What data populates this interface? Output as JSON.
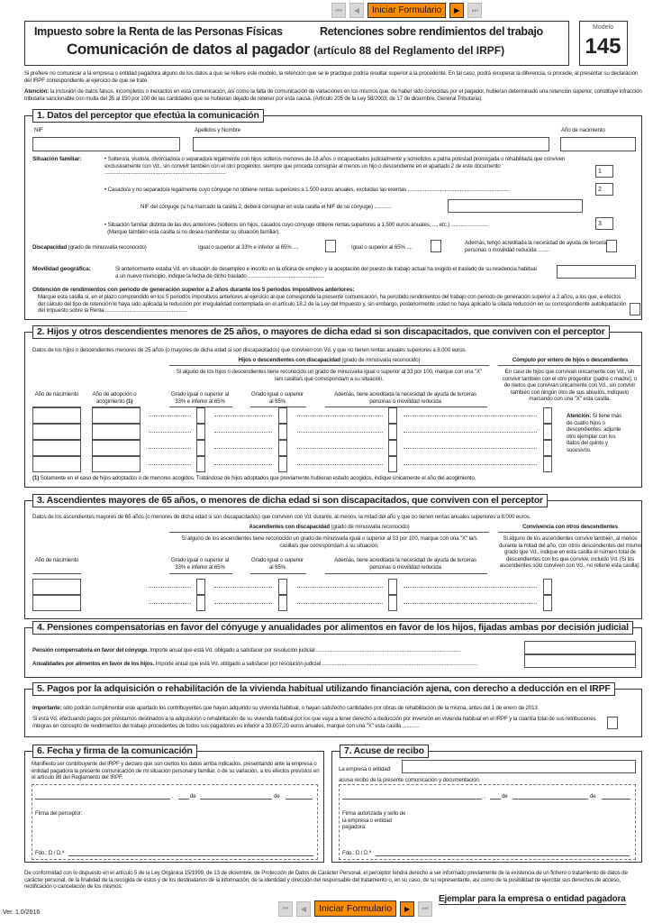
{
  "nav": {
    "first": "⏮",
    "prev": "◀",
    "start": "Iniciar Formulario",
    "next": "▶",
    "last": "⏭",
    "accent": "#ff8c00"
  },
  "header": {
    "tax": "Impuesto sobre la Renta de las Personas Físicas",
    "subject": "Retenciones sobre rendimientos del trabajo",
    "title": "Comunicación de datos al pagador",
    "article": "(artículo 88 del Reglamento del IRPF)",
    "modelo_label": "Modelo",
    "modelo_num": "145"
  },
  "intro": {
    "p1": "Si prefiere no comunicar a la empresa o entidad pagadora alguno de los datos a que se refiere este modelo, la retención que se le practique podría resultar superior a la procedente. En tal caso, podrá recuperar la diferencia, si procede, al presentar su declaración del IRPF correspondiente al ejercicio de que se trate.",
    "att_label": "Atención:",
    "p2": "la inclusión de datos falsos, incompletos o inexactos en esta comunicación, así como la falta de comunicación de variaciones en los mismos que, de haber sido conocidas por el pagador, hubieran determinado una retención superior, constituye infracción tributaria sancionable con multa del 35 al 150 por 100 de las cantidades que se hubieran dejado de retener por esta causa. (Artículo 205 de la Ley 58/2003, de 17 de diciembre, General Tributaria)."
  },
  "s1": {
    "title": "1. Datos del perceptor que efectúa la comunicación",
    "nif": "NIF",
    "nombre": "Apellidos y Nombre",
    "anio": "Año de nacimiento",
    "sit_label": "Situación familiar:",
    "opt1": "Soltero/a, viudo/a, divorciado/a o separado/a legalmente con hijos solteros menores de 18 años o incapacitados judicialmente y sometidos a patria potestad prorrogada o rehabilitada que conviven exclusivamente con Vd., sin convivir también con el otro progenitor, siempre que proceda consignar al menos un hijo o descendiente en el apartado 2 de este documento",
    "opt2": "Casado/a y no separado/a legalmente cuyo cónyuge no obtiene rentas superiores a 1.500 euros anuales, excluidas las exentas",
    "nif_conyuge": "NIF del cónyuge (si ha marcado la casilla 2, deberá consignar en esta casilla el NIF de su cónyuge) ............",
    "opt3": "Situación familiar distinta de las dos anteriores (solteros sin hijos, casados cuyo cónyuge obtiene rentas superiores a 1.500 euros anuales, ..., etc.)",
    "opt3b": "(Marque también esta casilla si no desea manifestar su situación familiar).",
    "box1": "1",
    "box2": "2",
    "box3": "3",
    "disc_label": "Discapacidad",
    "disc_sub": "(grado de minusvalía reconocido)",
    "disc33": "Igual o superior al 33% e inferior al 65% ....",
    "disc65": "Igual o superior al 65% ....",
    "disc_ayuda": "Además, tengo acreditada la necesidad de ayuda de terceras personas o movilidad reducida ........",
    "mov_label": "Movilidad geográfica:",
    "mov_text": "Si anteriormente estaba Vd. en situación de desempleo e inscrito en la oficina de empleo y la aceptación del puesto de trabajo actual ha exigido el traslado de su residencia habitual a un nuevo municipio, indique la fecha de dicho traslado",
    "rend_title": "Obtención de rendimientos con periodo de generación superior a 2 años durante los 5 periodos impositivos anteriores:",
    "rend_text": "Marque esta casilla si, en el plazo comprendido en los 5 periodos impositivos anteriores al ejercicio al que corresponde la presente comunicación, ha percibido rendimientos del trabajo con periodo de generación superior a 2 años, a los que, a efectos del cálculo del tipo de retención le haya sido aplicada la reducción por irregularidad contemplada en el artículo 18.2 de la Ley del Impuesto y, sin embargo, posteriormente usted no haya aplicado la citada reducción en su correspondiente autoliquidación del Impuesto sobre la Renta"
  },
  "s2": {
    "title": "2. Hijos y otros descendientes menores de 25 años, o mayores de dicha edad si son discapacitados, que conviven con el perceptor",
    "intro": "Datos de los hijos o descendientes menores de 25 años (o mayores de dicha edad si son discapacitados) que conviven con Vd. y que no tienen rentas anuales superiores a 8.000 euros.",
    "disc_head": "Hijos o descendientes con discapacidad",
    "disc_head_sub": "(grado de minusvalía reconocido)",
    "comp_head": "Cómputo por entero de hijos o descendientes",
    "disc_note": "Si alguno de los hijos o descendientes tiene reconocido un grado de minusvalía igual o superior al 33 por 100, marque con una \"X\" la/s casilla/s que corresponda/n a su situación.",
    "comp_note": "En caso de hijos que convivan únicamente con Vd., sin convivir también con el otro progenitor (padre o madre), o de nietos que convivan únicamente con Vd., sin convivir también con ningún otro de sus abuelos, indíquelo marcando con una \"X\" esta casilla.",
    "col_anio": "Año de nacimiento",
    "col_adop": "Año de adopción o acogimiento",
    "col_adop_sup": "(1)",
    "col_33": "Grado igual o superior al 33% e inferior al 65%",
    "col_65": "Grado igual o superior al 65%",
    "col_ayuda": "Además, tiene acreditada la necesidad de ayuda de terceras personas o movilidad reducida",
    "att_label": "Atención:",
    "att_text": "Si tiene más de cuatro hijos o descendientes, adjunte otro ejemplar con los datos del quinto y sucesivos.",
    "foot_sup": "(1)",
    "foot": "Solamente en el caso de hijos adoptados o de menores acogidos. Tratándose de hijos adoptados que previamente hubieran estado acogidos, indique únicamente el año del acogimiento."
  },
  "s3": {
    "title": "3. Ascendientes mayores de 65 años, o menores de dicha edad si son discapacitados, que conviven con el perceptor",
    "intro": "Datos de los ascendientes mayores de 65 años (o menores de dicha edad si son discapacitados) que conviven con Vd. durante, al menos, la mitad del año y que no tienen rentas anuales superiores a 8.000 euros.",
    "disc_head": "Ascendientes con discapacidad",
    "disc_head_sub": "(grado de minusvalía reconocido)",
    "conv_head": "Convivencia con otros descendientes",
    "disc_note": "Si alguno de los ascendientes tiene reconocido un grado de minusvalía igual o superior al 33 por 100, marque con una \"X\" la/s casilla/s que corresponda/n a su situación.",
    "conv_note": "Si alguno de los ascendientes convive también, al menos durante la mitad del año, con otros descendientes del mismo grado que Vd., indique en esta casilla el número total de descendientes con los que convive, incluido Vd. (Si los ascendientes sólo conviven con Vd., no rellene esta casilla).",
    "col_anio": "Año de nacimiento",
    "col_33": "Grado igual o superior al 33% e inferior al 65%",
    "col_65": "Grado igual o superior al 65%",
    "col_ayuda": "Además, tiene acreditada la necesidad de ayuda de terceras personas o movilidad reducida"
  },
  "s4": {
    "title": "4. Pensiones compensatorias en favor del cónyuge y anualidades por alimentos en favor de los hijos, fijadas ambas por decisión judicial",
    "pens_label": "Pensión compensatoria en favor del cónyuge.",
    "pens_text": "Importe anual que está Vd. obligado a satisfacer por resolución judicial",
    "anu_label": "Anualidades por alimentos en favor de los hijos.",
    "anu_text": "Importe anual que está Vd. obligado a satisfacer por resolución judicial"
  },
  "s5": {
    "title": "5. Pagos por la adquisición o rehabilitación de la vivienda habitual utilizando financiación ajena, con derecho a deducción en el IRPF",
    "imp_label": "Importante:",
    "imp_text": "sólo podrán cumplimentar este apartado los contribuyentes que hayan adquirido su vivienda habitual, o hayan satisfecho cantidades por obras de rehabilitación de la misma, antes del 1 de enero de 2013.",
    "text": "Si está Vd. efectuando pagos por préstamos destinados a la adquisición o rehabilitación de su vivienda habitual por los que vaya a tener derecho a deducción por inversión en vivienda habitual en el IRPF y la cuantía total de sus retribuciones íntegras en concepto de rendimientos del trabajo procedentes de todos sus pagadores es inferior a 33.007,20 euros anuales, marque con una \"X\" esta casilla ............"
  },
  "s6": {
    "title": "6. Fecha y firma de la comunicación",
    "text": "Manifiesto ser contribuyente del IRPF y declaro que son ciertos los datos arriba indicados, presentando ante la empresa o entidad pagadora la presente comunicación de mi situación personal y familiar, o de su variación, a los efectos previstos en el artículo 88 del Reglamento del IRPF.",
    "de": "de",
    "comma": ",",
    "firma": "Firma del perceptor:",
    "fdo": "Fdo.: D / D.ª"
  },
  "s7": {
    "title": "7. Acuse de recibo",
    "empresa": "La empresa o entidad:",
    "acusa": "acusa recibo de la presente comunicación y documentación.",
    "de": "de",
    "comma": ",",
    "firma": "Firma autorizada y sello de la empresa o entidad pagadora:",
    "fdo": "Fdo.: D / D.ª"
  },
  "footer": {
    "lopd": "De conformidad con lo dispuesto en el artículo 5 de la Ley Orgánica 15/1999, de 13 de diciembre, de Protección de Datos de Carácter Personal, el perceptor tendrá derecho a ser informado previamente de la existencia de un fichero o tratamiento de datos de carácter personal, de la finalidad de la recogida de éstos y de los destinatarios de la información, de la identidad y dirección del responsable del tratamiento o, en su caso, de su representante, así como de la posibilidad de ejercitar sus derechos de acceso, rectificación o cancelación de los mismos.",
    "ejemplar": "Ejemplar para la empresa o entidad pagadora",
    "version": "Ver. 1.0/2016"
  }
}
